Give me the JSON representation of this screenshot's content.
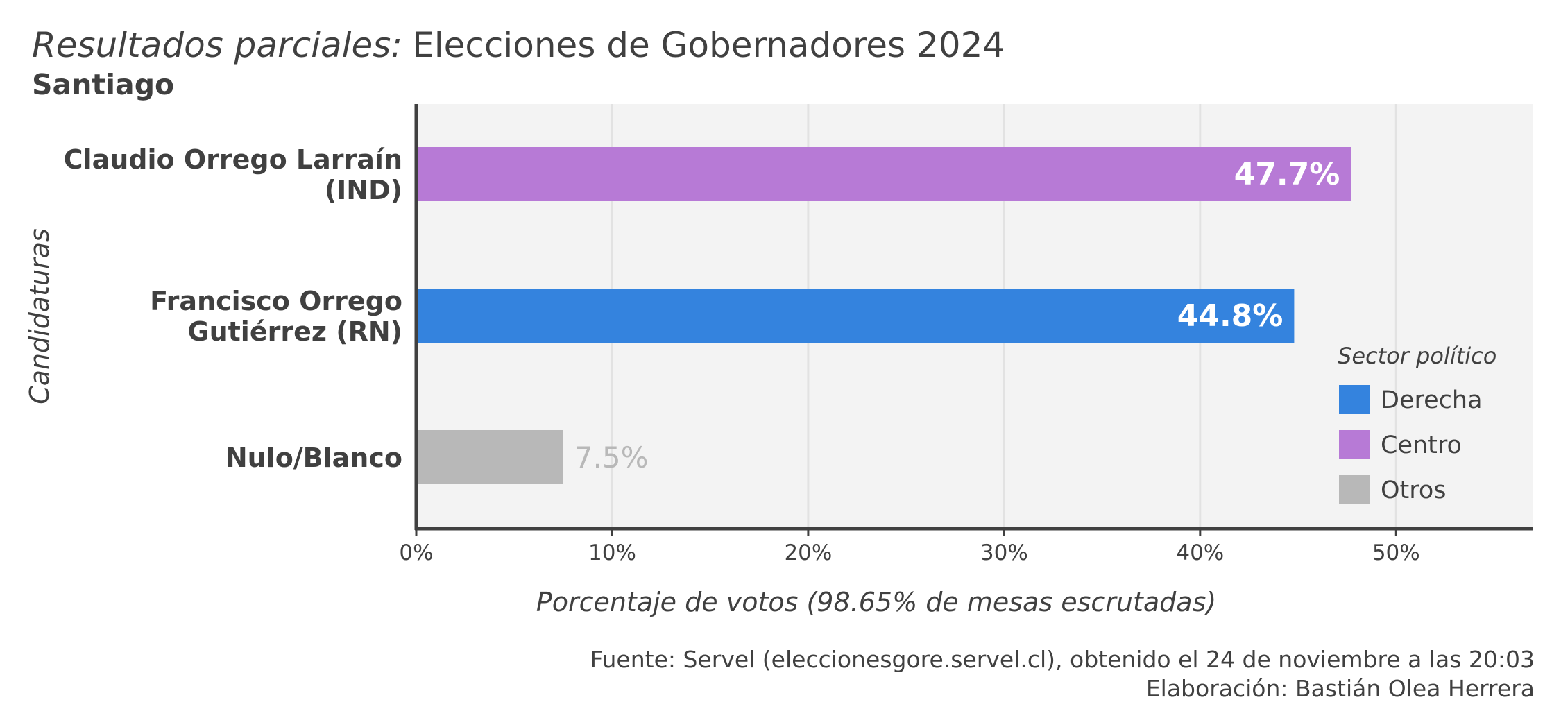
{
  "header": {
    "title_italic": "Resultados parciales:",
    "title_rest": "Elecciones de Gobernadores 2024",
    "subtitle": "Santiago"
  },
  "chart_data": {
    "type": "bar",
    "orientation": "horizontal",
    "categories": [
      [
        "Claudio Orrego Larraín",
        "(IND)"
      ],
      [
        "Francisco Orrego",
        "Gutiérrez (RN)"
      ],
      [
        "Nulo/Blanco"
      ]
    ],
    "values": [
      47.7,
      44.8,
      7.5
    ],
    "value_labels": [
      "47.7%",
      "44.8%",
      "7.5%"
    ],
    "sectors": [
      "Centro",
      "Derecha",
      "Otros"
    ],
    "xlim": [
      0,
      57
    ],
    "xticks": [
      0,
      10,
      20,
      30,
      40,
      50
    ],
    "xtick_labels": [
      "0%",
      "10%",
      "20%",
      "30%",
      "40%",
      "50%"
    ],
    "xlabel": "Porcentaje de votos (98.65% de mesas escrutadas)",
    "ylabel": "Candidaturas",
    "grid": "vertical",
    "legend": {
      "title": "Sector político",
      "position": "right",
      "items": [
        {
          "label": "Derecha",
          "color": "#3483DE"
        },
        {
          "label": "Centro",
          "color": "#B77AD6"
        },
        {
          "label": "Otros",
          "color": "#B8B8B8"
        }
      ]
    }
  },
  "colors": {
    "Derecha": "#3483DE",
    "Centro": "#B77AD6",
    "Otros": "#B8B8B8",
    "panel": "#F3F3F3",
    "gridline": "#E2E2E2",
    "axis": "#404040"
  },
  "caption": {
    "line1": "Fuente: Servel (eleccionesgore.servel.cl), obtenido el 24 de noviembre a las 20:03",
    "line2": "Elaboración: Bastián Olea Herrera"
  }
}
